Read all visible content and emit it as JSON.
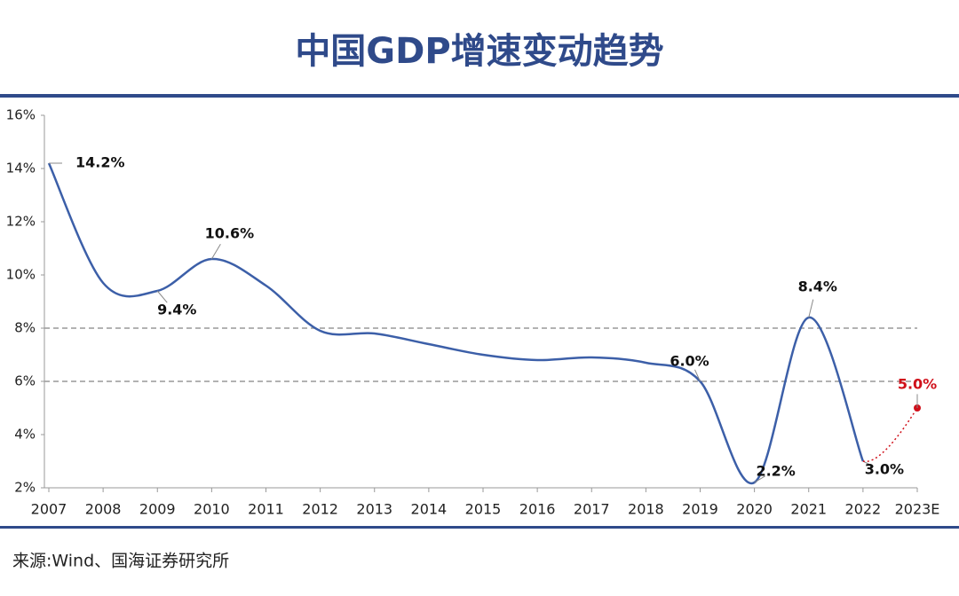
{
  "title": "中国GDP增速变动趋势",
  "source": "来源:Wind、国海证券研究所",
  "chart_data": {
    "type": "line",
    "categories": [
      "2007",
      "2008",
      "2009",
      "2010",
      "2011",
      "2012",
      "2013",
      "2014",
      "2015",
      "2016",
      "2017",
      "2018",
      "2019",
      "2020",
      "2021",
      "2022",
      "2023E"
    ],
    "series": [
      {
        "color": "#3c5fa8",
        "values": [
          14.2,
          9.7,
          9.4,
          10.6,
          9.6,
          7.9,
          7.8,
          7.4,
          7.0,
          6.8,
          6.9,
          6.7,
          6.0,
          2.2,
          8.4,
          3.0,
          null
        ],
        "value_labels": [
          "14.2%",
          null,
          "9.4%",
          "10.6%",
          null,
          null,
          null,
          null,
          null,
          null,
          null,
          null,
          "6.0%",
          "2.2%",
          "8.4%",
          "3.0%",
          null
        ]
      },
      {
        "color": "#d0101a",
        "dashed": true,
        "values": [
          null,
          null,
          null,
          null,
          null,
          null,
          null,
          null,
          null,
          null,
          null,
          null,
          null,
          null,
          null,
          null,
          5.0
        ],
        "value_labels": [
          null,
          null,
          null,
          null,
          null,
          null,
          null,
          null,
          null,
          null,
          null,
          null,
          null,
          null,
          null,
          null,
          "5.0%"
        ]
      }
    ],
    "ylim": [
      2,
      16
    ],
    "yticks": [
      {
        "value": 2,
        "label": "2%"
      },
      {
        "value": 4,
        "label": "4%"
      },
      {
        "value": 6,
        "label": "6%"
      },
      {
        "value": 8,
        "label": "8%"
      },
      {
        "value": 10,
        "label": "10%"
      },
      {
        "value": 12,
        "label": "12%"
      },
      {
        "value": 14,
        "label": "14%"
      },
      {
        "value": 16,
        "label": "16%"
      }
    ],
    "reference_lines": [
      6,
      8
    ]
  }
}
